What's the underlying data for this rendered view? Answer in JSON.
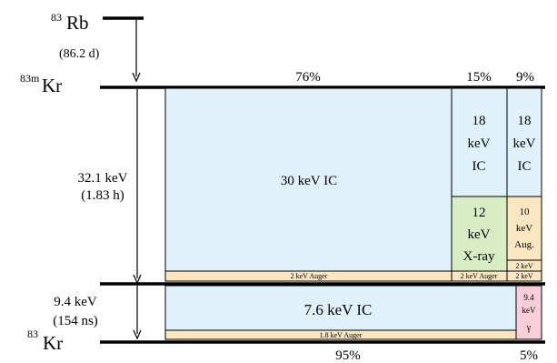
{
  "isotopes": {
    "rb": {
      "mass": "83",
      "symbol": "Rb"
    },
    "krm": {
      "mass": "83m",
      "symbol": "Kr"
    },
    "kr": {
      "mass": "83",
      "symbol": "Kr"
    }
  },
  "rb_halflife": "(86.2 d)",
  "transition1": {
    "energy": "32.1 keV",
    "halflife": "(1.83 h)"
  },
  "transition2": {
    "energy": "9.4 keV",
    "halflife": "(154 ns)"
  },
  "branches_top": {
    "b76": "76%",
    "b15": "15%",
    "b9": "9%"
  },
  "branches_bottom": {
    "b95": "95%",
    "b5": "5%"
  },
  "boxes": {
    "ic30": "30 keV IC",
    "ic18_a": [
      "18",
      "keV",
      "IC"
    ],
    "ic18_b": [
      "18",
      "keV",
      "IC"
    ],
    "xray12": [
      "12",
      "keV",
      "X-ray"
    ],
    "aug10": [
      "10",
      "keV",
      "Aug."
    ],
    "auger2_wide": "2 keV Auger",
    "auger2_mid": "2 keV Auger",
    "auger2_small_top": "2 keV",
    "auger2_small_bottom": "2 keV",
    "ic76": "7.6 keV IC",
    "auger18": "1.8 keV Auger",
    "gamma": [
      "9.4",
      "keV",
      "γ"
    ]
  },
  "colors": {
    "ic_fill": "#dff1fb",
    "auger_fill": "#fbe6c2",
    "xray_fill": "#d9edc4",
    "gamma_fill": "#f8cfd8",
    "line": "#000000"
  }
}
